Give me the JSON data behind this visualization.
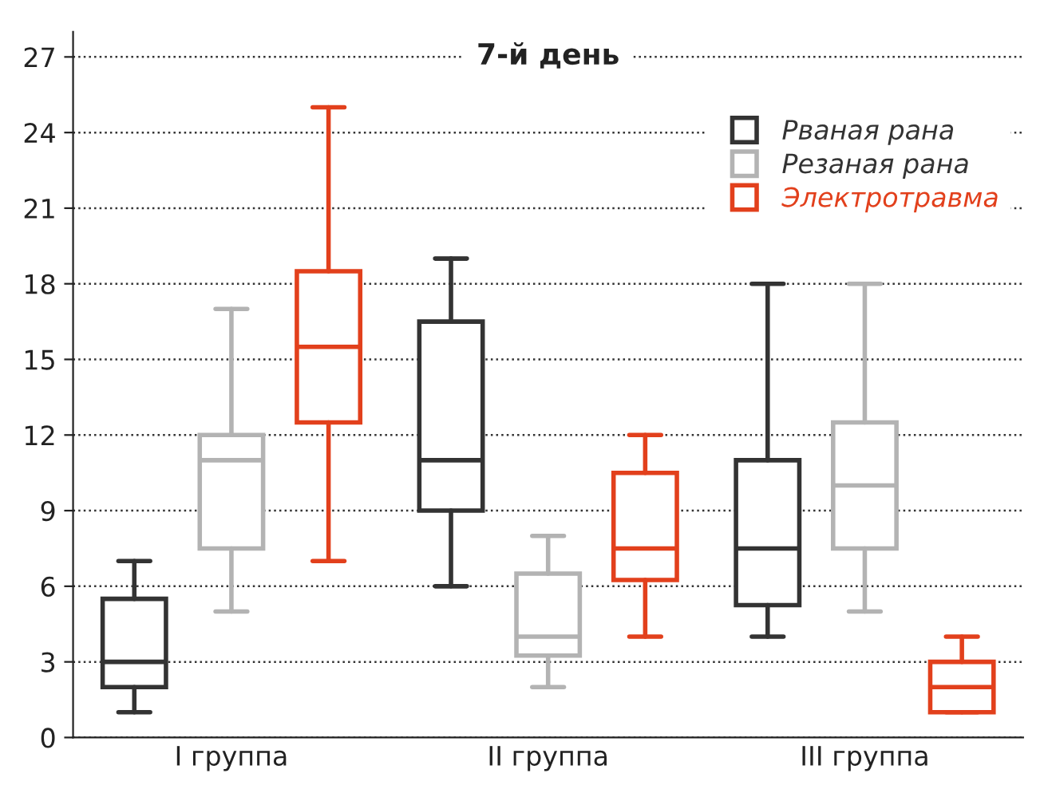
{
  "chart_data": {
    "type": "box",
    "title": "7-й день",
    "categories": [
      "I группа",
      "II группа",
      "III группа"
    ],
    "series": [
      {
        "name": "Рваная рана",
        "color": "#333333",
        "boxes": [
          {
            "low": 1,
            "q1": 2,
            "median": 3,
            "q3": 5.5,
            "high": 7
          },
          {
            "low": 6,
            "q1": 9,
            "median": 11,
            "q3": 16.5,
            "high": 19
          },
          {
            "low": 4,
            "q1": 5.25,
            "median": 7.5,
            "q3": 11,
            "high": 18
          }
        ]
      },
      {
        "name": "Резаная рана",
        "color": "#b3b3b3",
        "boxes": [
          {
            "low": 5,
            "q1": 7.5,
            "median": 11,
            "q3": 12,
            "high": 17
          },
          {
            "low": 2,
            "q1": 3.25,
            "median": 4,
            "q3": 6.5,
            "high": 8
          },
          {
            "low": 5,
            "q1": 7.5,
            "median": 10,
            "q3": 12.5,
            "high": 18
          }
        ]
      },
      {
        "name": "Электротравма",
        "color": "#e2401c",
        "boxes": [
          {
            "low": 7,
            "q1": 12.5,
            "median": 15.5,
            "q3": 18.5,
            "high": 25
          },
          {
            "low": 4,
            "q1": 6.25,
            "median": 7.5,
            "q3": 10.5,
            "high": 12
          },
          {
            "low": 1,
            "q1": 1,
            "median": 2,
            "q3": 3,
            "high": 4
          }
        ]
      }
    ],
    "ylim": [
      0,
      28
    ],
    "yticks": [
      0,
      3,
      6,
      9,
      12,
      15,
      18,
      21,
      24,
      27
    ],
    "grid": "y",
    "legend": "top right"
  }
}
